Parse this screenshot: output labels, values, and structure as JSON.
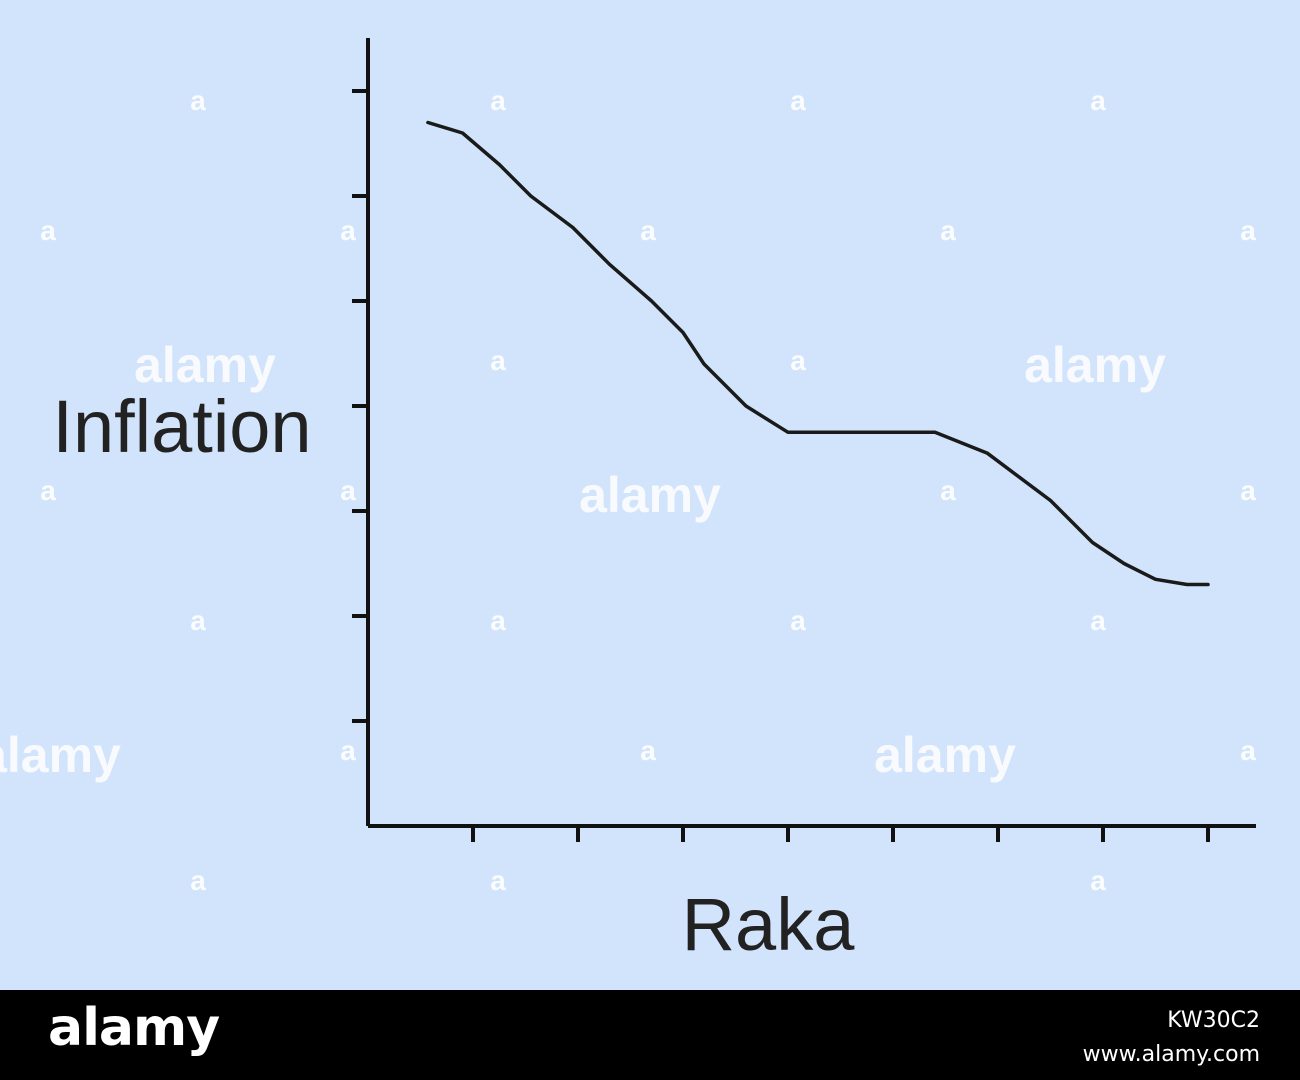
{
  "colors": {
    "background": "#d1e4fb",
    "line": "#1a1a1a",
    "axis": "#111111",
    "text": "#222222",
    "watermark": "#ffffff",
    "footer": "#000000"
  },
  "watermark": {
    "text": "alamy",
    "mark": "a"
  },
  "footer": {
    "logo": "alamy",
    "image_id": "KW30C2",
    "site": "www.alamy.com"
  },
  "chart_data": {
    "type": "line",
    "title": "",
    "xlabel": "Raka",
    "ylabel": "Inflation",
    "xlim": [
      0,
      8.5
    ],
    "ylim": [
      0,
      7.5
    ],
    "x_ticks": [
      1,
      2,
      3,
      4,
      5,
      6,
      7,
      8
    ],
    "y_ticks": [
      1,
      2,
      3,
      4,
      5,
      6,
      7
    ],
    "grid": false,
    "legend": "none",
    "series": [
      {
        "x": [
          0.57,
          0.9,
          1.25,
          1.55,
          1.95,
          2.3,
          2.7,
          3.0,
          3.2,
          3.6,
          4.0,
          4.5,
          5.0,
          5.4,
          5.9,
          6.5,
          6.9,
          7.2,
          7.5,
          7.8,
          8.0
        ],
        "y": [
          6.7,
          6.6,
          6.3,
          6.0,
          5.7,
          5.35,
          5.0,
          4.7,
          4.4,
          4.0,
          3.75,
          3.75,
          3.75,
          3.75,
          3.55,
          3.1,
          2.7,
          2.5,
          2.35,
          2.3,
          2.3
        ]
      }
    ]
  }
}
